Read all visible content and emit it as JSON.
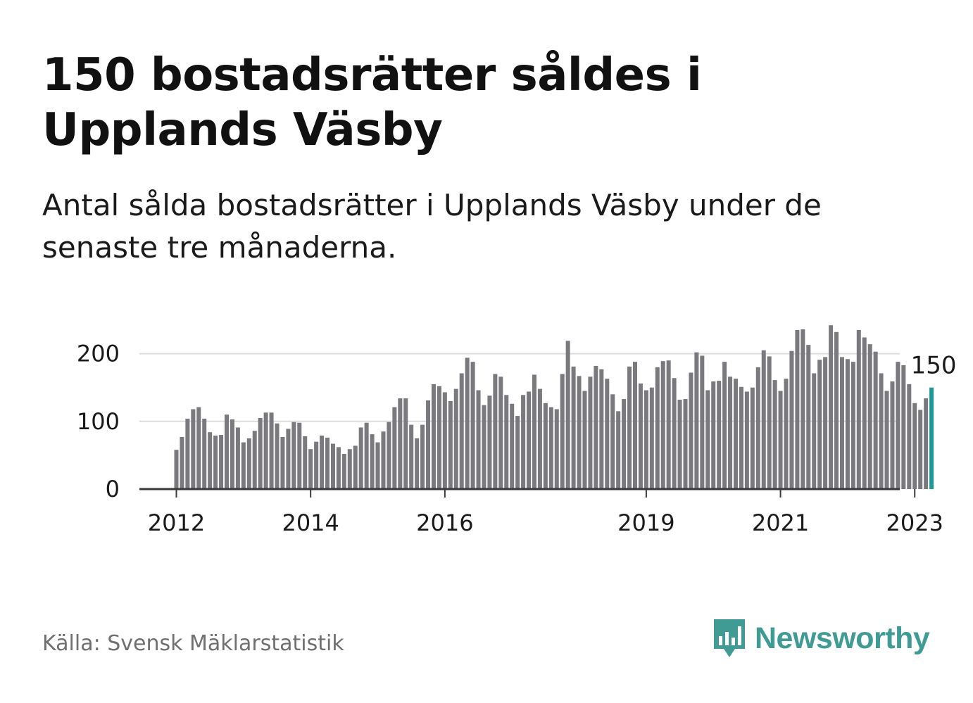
{
  "title": "150 bostadsrätter såldes i Upplands Väsby",
  "subtitle": "Antal sålda bostadsrätter i Upplands Väsby under de senaste tre månaderna.",
  "source": "Källa: Svensk Mäklarstatistik",
  "brand": {
    "name": "Newsworthy",
    "icon": "newsworthy-logo-icon",
    "color": "#3f9b94"
  },
  "colors": {
    "bar": "#7a797e",
    "highlight": "#1f9a96",
    "grid": "#dcdcdc",
    "axis": "#3a3a3a",
    "text": "#1a1a1a"
  },
  "chart_data": {
    "type": "bar",
    "title": "150 bostadsrätter såldes i Upplands Väsby",
    "xlabel": "",
    "ylabel": "",
    "ylim": [
      0,
      250
    ],
    "yticks": [
      0,
      100,
      200
    ],
    "grid": true,
    "start": "2012-01",
    "x_ticks": [
      {
        "label": "2012",
        "index": 0
      },
      {
        "label": "2014",
        "index": 24
      },
      {
        "label": "2016",
        "index": 48
      },
      {
        "label": "2019",
        "index": 84
      },
      {
        "label": "2021",
        "index": 108
      },
      {
        "label": "2023",
        "index": 132
      }
    ],
    "highlight_index": 135,
    "highlight_label": "150",
    "values": [
      58,
      77,
      104,
      118,
      121,
      104,
      84,
      79,
      80,
      110,
      103,
      91,
      69,
      75,
      86,
      105,
      113,
      113,
      97,
      77,
      89,
      99,
      98,
      78,
      59,
      70,
      79,
      76,
      67,
      62,
      52,
      59,
      64,
      91,
      98,
      81,
      69,
      85,
      99,
      121,
      134,
      134,
      95,
      75,
      95,
      131,
      155,
      152,
      143,
      130,
      148,
      171,
      194,
      188,
      146,
      124,
      138,
      170,
      166,
      139,
      126,
      108,
      139,
      144,
      169,
      148,
      127,
      121,
      118,
      170,
      219,
      181,
      167,
      145,
      166,
      182,
      177,
      163,
      140,
      115,
      133,
      181,
      188,
      156,
      146,
      150,
      180,
      189,
      190,
      164,
      132,
      133,
      172,
      202,
      197,
      146,
      159,
      160,
      188,
      166,
      163,
      151,
      144,
      150,
      180,
      205,
      196,
      161,
      145,
      163,
      204,
      235,
      236,
      213,
      171,
      191,
      195,
      242,
      232,
      195,
      192,
      188,
      235,
      224,
      214,
      203,
      171,
      145,
      159,
      188,
      183,
      155,
      127,
      117,
      134,
      150
    ]
  }
}
